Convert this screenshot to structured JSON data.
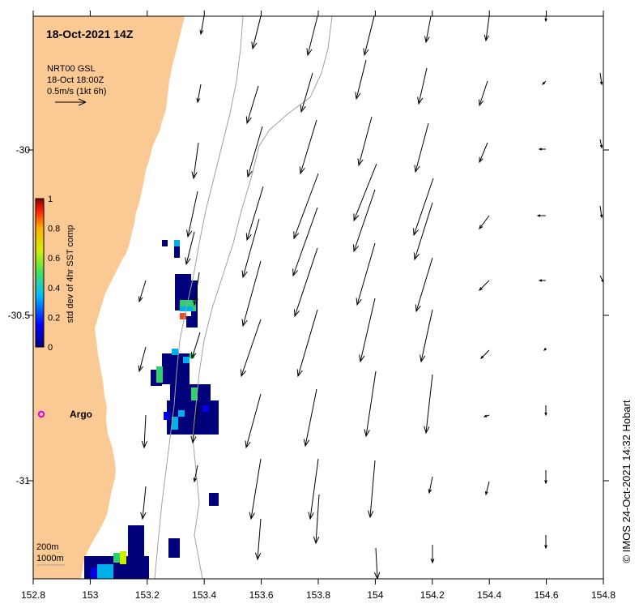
{
  "title": "18-Oct-2021 14Z",
  "current_info": {
    "line1": "NRT00 GSL",
    "line2": "18-Oct 18:00Z",
    "line3": "0.5m/s (1kt 6h)"
  },
  "colorbar": {
    "label": "std dev of 4hr SST comp",
    "ticks": [
      "1",
      "0.8",
      "0.6",
      "0.4",
      "0.2",
      "0"
    ]
  },
  "axes": {
    "lon_ticks": [
      "152.8",
      "153",
      "153.2",
      "153.4",
      "153.6",
      "153.8",
      "154",
      "154.2",
      "154.4",
      "154.6",
      "154.8"
    ],
    "lat_ticks": [
      "-30",
      "-30.5",
      "-31"
    ]
  },
  "argo": {
    "label": "Argo",
    "lon": 152.83,
    "lat": -30.81,
    "color": "#e000e0"
  },
  "contours": {
    "line1": "200m",
    "line2": "1000m"
  },
  "credit": "© IMOS 24-Oct-2021 14:32 Hobart",
  "colors": {
    "land": "#fbc994",
    "ocean": "#ffffff",
    "argo": "#e000e0",
    "isobath": "#a0a0a0"
  }
}
